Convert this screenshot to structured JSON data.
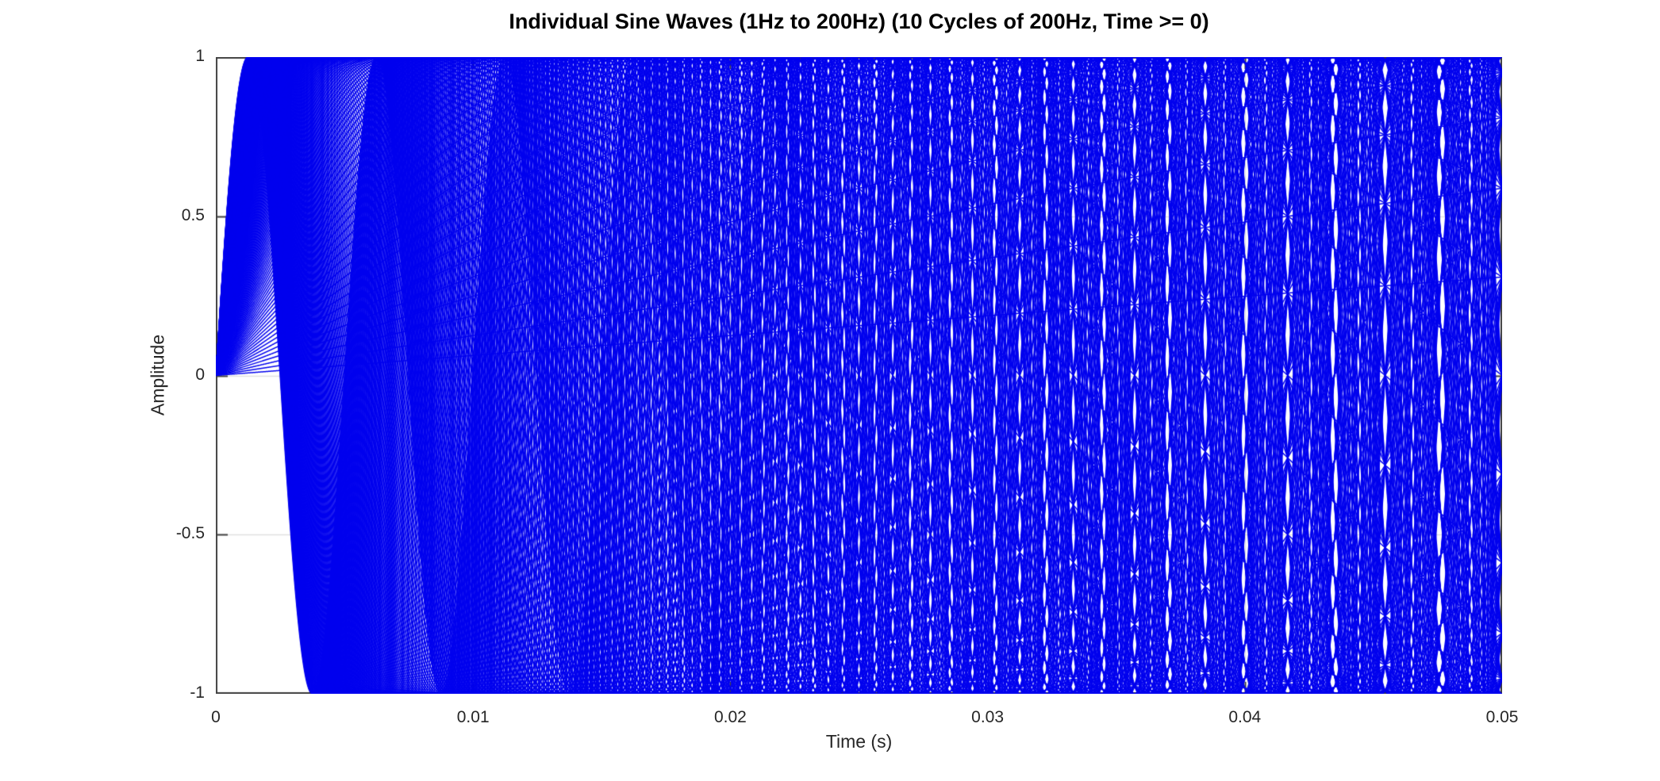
{
  "figure": {
    "background_color": "#ffffff"
  },
  "chart_data": {
    "type": "line",
    "title": "Individual Sine Waves (1Hz to 200Hz) (10 Cycles of 200Hz, Time >= 0)",
    "xlabel": "Time (s)",
    "ylabel": "Amplitude",
    "xlim": [
      0,
      0.05
    ],
    "ylim": [
      -1,
      1
    ],
    "xticks": [
      0,
      0.01,
      0.02,
      0.03,
      0.04,
      0.05
    ],
    "xtick_labels": [
      "0",
      "0.01",
      "0.02",
      "0.03",
      "0.04",
      "0.05"
    ],
    "yticks": [
      1,
      0.5,
      0,
      -0.5,
      -1
    ],
    "ytick_labels": [
      "1",
      "0.5",
      "0",
      "-0.5",
      "-1"
    ],
    "grid": true,
    "legend": "none",
    "line_color": "#0000ee",
    "axis_color": "#404040",
    "grid_color": "rgba(38,38,38,0.14)",
    "tick_label_color": "#262626",
    "series_generator": {
      "formula": "y = amplitude * sin(2*pi*f*t)",
      "frequency_start_hz": 1,
      "frequency_end_hz": 200,
      "frequency_step_hz": 1,
      "wave_count": 200,
      "amplitude": 1,
      "t_start_s": 0,
      "t_end_s": 0.05,
      "cycles_of_200hz_shown": 10
    }
  }
}
